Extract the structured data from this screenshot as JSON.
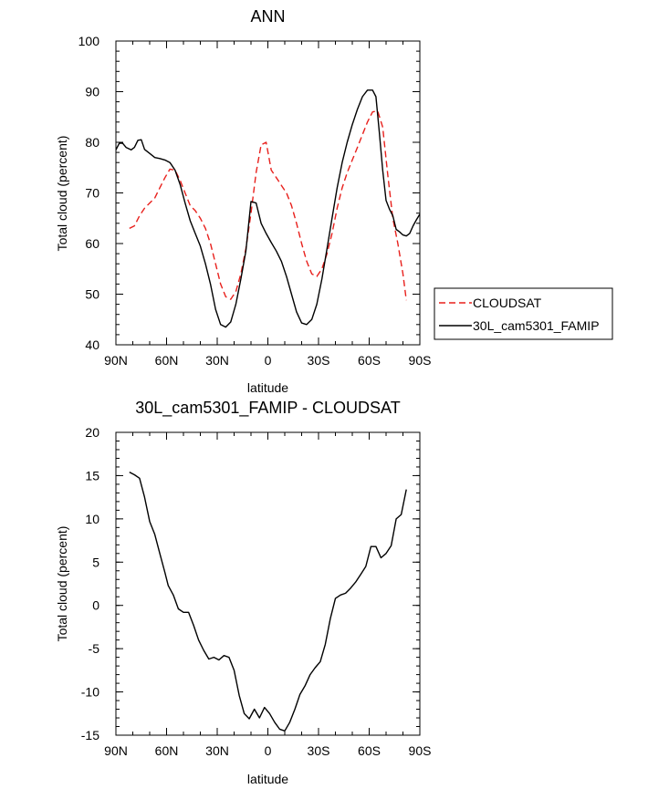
{
  "chart_data": [
    {
      "type": "line",
      "title": "ANN",
      "xlabel": "latitude",
      "ylabel": "Total cloud (percent)",
      "xlim": [
        90,
        -90
      ],
      "ylim": [
        40,
        100
      ],
      "xticks": [
        90,
        60,
        30,
        0,
        -30,
        -60,
        -90
      ],
      "xticklabels": [
        "90N",
        "60N",
        "30N",
        "0",
        "30S",
        "60S",
        "90S"
      ],
      "yticks": [
        40,
        50,
        60,
        70,
        80,
        90,
        100
      ],
      "yticklabels": [
        "40",
        "50",
        "60",
        "70",
        "80",
        "90",
        "100"
      ],
      "grid": false,
      "legend_position": "right",
      "series": [
        {
          "name": "CLOUDSAT",
          "color": "#e8201c",
          "dash": "dashed",
          "x": [
            82,
            79,
            76,
            73,
            70,
            67,
            64,
            61,
            58,
            55,
            52,
            49,
            46,
            43,
            40,
            37,
            34,
            31,
            28,
            25,
            22,
            19,
            16,
            13,
            10,
            7,
            4,
            1,
            -2,
            -5,
            -8,
            -11,
            -14,
            -17,
            -20,
            -23,
            -26,
            -29,
            -32,
            -35,
            -38,
            -41,
            -44,
            -47,
            -50,
            -53,
            -56,
            -59,
            -62,
            -65,
            -68,
            -71,
            -74,
            -77,
            -80,
            -82
          ],
          "y": [
            63,
            63.5,
            65.5,
            67,
            68,
            69,
            71,
            73,
            74.7,
            74.5,
            72.5,
            70,
            67.5,
            66.5,
            65,
            63,
            60,
            56,
            52,
            49.5,
            49,
            50.5,
            54,
            59,
            66,
            74,
            79.5,
            80,
            74.5,
            73,
            71.5,
            70,
            67.5,
            64,
            60,
            56.5,
            54,
            53.5,
            55,
            58,
            62,
            67,
            71,
            74,
            76.5,
            79,
            81.5,
            84,
            86,
            86.2,
            83,
            73.5,
            65,
            60,
            54,
            48.8
          ]
        },
        {
          "name": "30L_cam5301_FAMIP",
          "color": "#000000",
          "dash": "solid",
          "x": [
            90,
            88,
            86,
            84,
            81,
            79,
            77,
            75,
            73,
            70,
            67,
            64,
            61,
            58,
            55,
            52,
            49,
            46,
            43,
            40,
            37,
            34,
            31,
            28,
            25,
            22,
            19,
            16,
            13,
            10,
            7,
            4,
            1,
            -2,
            -5,
            -8,
            -11,
            -14,
            -17,
            -20,
            -23,
            -26,
            -29,
            -32,
            -35,
            -38,
            -41,
            -44,
            -47,
            -50,
            -53,
            -56,
            -59,
            -62,
            -64,
            -66,
            -68,
            -70,
            -72,
            -74,
            -76,
            -78,
            -80,
            -82,
            -84,
            -86,
            -88,
            -90
          ],
          "y": [
            78.5,
            79.8,
            79.8,
            79,
            78.5,
            79,
            80.4,
            80.5,
            78.6,
            77.8,
            77,
            76.8,
            76.5,
            76,
            74.5,
            71.7,
            68,
            64.5,
            62,
            59.5,
            56,
            52,
            47,
            44,
            43.5,
            44.5,
            48,
            53,
            58.5,
            68.3,
            68,
            64,
            62,
            60.2,
            58.5,
            56.5,
            53.5,
            50,
            46.5,
            44.3,
            44,
            45,
            48,
            53,
            59,
            65,
            71,
            76,
            80,
            83.5,
            86.5,
            89,
            90.3,
            90.3,
            89,
            82,
            74.5,
            68.5,
            66.8,
            65.5,
            62.8,
            62.3,
            61.7,
            61.5,
            62,
            63.5,
            64.7,
            65.8
          ]
        }
      ]
    },
    {
      "type": "line",
      "title": "30L_cam5301_FAMIP - CLOUDSAT",
      "xlabel": "latitude",
      "ylabel": "Total cloud (percent)",
      "xlim": [
        90,
        -90
      ],
      "ylim": [
        -15,
        20
      ],
      "xticks": [
        90,
        60,
        30,
        0,
        -30,
        -60,
        -90
      ],
      "xticklabels": [
        "90N",
        "60N",
        "30N",
        "0",
        "30S",
        "60S",
        "90S"
      ],
      "yticks": [
        -15,
        -10,
        -5,
        0,
        5,
        10,
        15,
        20
      ],
      "yticklabels": [
        "-15",
        "-10",
        "-5",
        "0",
        "5",
        "10",
        "15",
        "20"
      ],
      "grid": false,
      "series": [
        {
          "color": "#000000",
          "dash": "solid",
          "x": [
            82,
            79,
            76,
            73,
            70,
            67,
            64,
            61,
            59,
            56,
            53,
            50,
            47,
            44,
            41,
            38,
            35,
            32,
            29,
            26,
            23,
            20,
            17,
            14,
            11,
            8,
            5,
            2,
            -1,
            -4,
            -7,
            -10,
            -13,
            -16,
            -19,
            -22,
            -25,
            -28,
            -31,
            -34,
            -37,
            -40,
            -43,
            -46,
            -49,
            -52,
            -55,
            -58,
            -61,
            -64,
            -67,
            -70,
            -73,
            -76,
            -79,
            -82
          ],
          "y": [
            15.4,
            15.1,
            14.7,
            12.5,
            9.7,
            8.2,
            6,
            3.8,
            2.3,
            1.2,
            -0.4,
            -0.8,
            -0.8,
            -2.3,
            -4,
            -5.2,
            -6.2,
            -6,
            -6.3,
            -5.8,
            -6,
            -7.5,
            -10.4,
            -12.5,
            -13.1,
            -12,
            -13,
            -11.8,
            -12.5,
            -13.5,
            -14.3,
            -14.5,
            -13.5,
            -12,
            -10.3,
            -9.3,
            -8,
            -7.2,
            -6.5,
            -4.5,
            -1.5,
            0.8,
            1.2,
            1.4,
            2,
            2.7,
            3.6,
            4.5,
            6.8,
            6.8,
            5.5,
            6,
            6.9,
            10,
            10.5,
            13.4
          ]
        }
      ]
    }
  ]
}
